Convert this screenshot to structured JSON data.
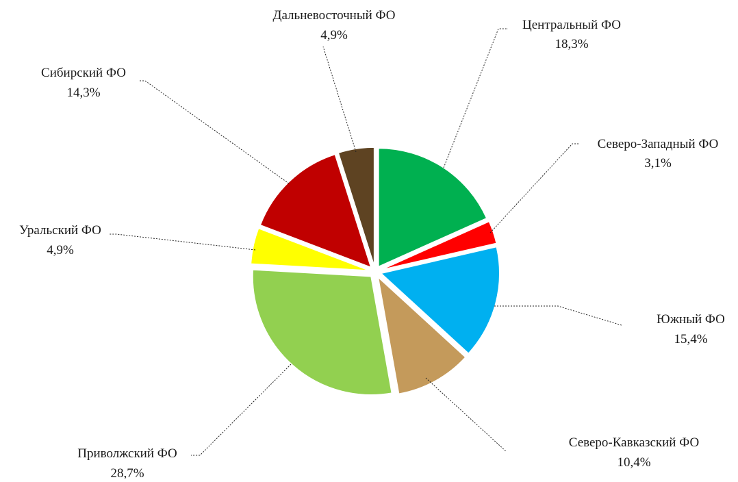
{
  "chart_data": {
    "type": "pie",
    "title": "",
    "start_angle_deg": 0,
    "direction": "clockwise",
    "exploded": true,
    "data_labels_visible": true,
    "slices": [
      {
        "label": "Центральный ФО",
        "value": 18.3,
        "value_label": "18,3%",
        "color": "#00B050"
      },
      {
        "label": "Северо-Западный ФО",
        "value": 3.1,
        "value_label": "3,1%",
        "color": "#FF0000"
      },
      {
        "label": "Южный ФО",
        "value": 15.4,
        "value_label": "15,4%",
        "color": "#00B0F0"
      },
      {
        "label": "Северо-Кавказский ФО",
        "value": 10.4,
        "value_label": "10,4%",
        "color": "#C49A5B"
      },
      {
        "label": "Приволжский ФО",
        "value": 28.7,
        "value_label": "28,7%",
        "color": "#92D050"
      },
      {
        "label": "Уральский ФО",
        "value": 4.9,
        "value_label": "4,9%",
        "color": "#FFFF00"
      },
      {
        "label": "Сибирский ФО",
        "value": 14.3,
        "value_label": "14,3%",
        "color": "#C00000"
      },
      {
        "label": "Дальневосточный ФО",
        "value": 4.9,
        "value_label": "4,9%",
        "color": "#5E4322"
      }
    ]
  }
}
